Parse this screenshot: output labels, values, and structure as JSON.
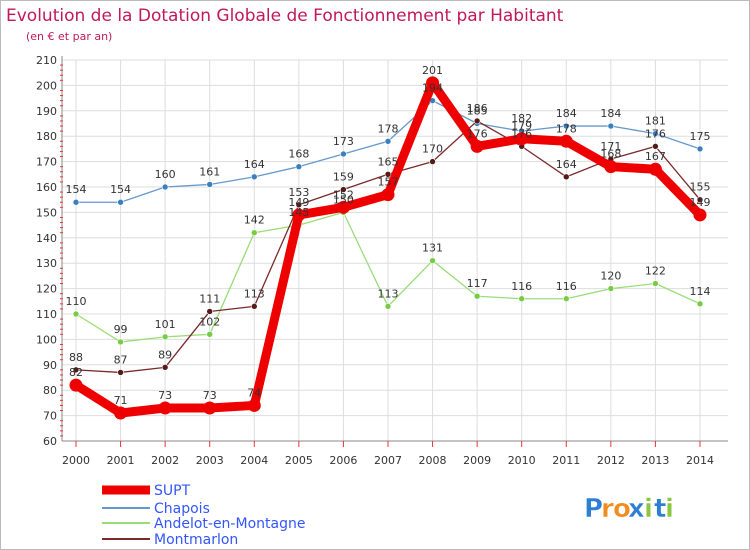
{
  "chart_data": {
    "type": "line",
    "title": "Evolution de la Dotation Globale de Fonctionnement par Habitant",
    "subtitle": "(en € et par an)",
    "xlabel": "",
    "ylabel": "",
    "ylim": [
      60,
      210
    ],
    "y_ticks": [
      60,
      70,
      80,
      90,
      100,
      110,
      120,
      130,
      140,
      150,
      160,
      170,
      180,
      190,
      200,
      210
    ],
    "grid": true,
    "legend_position": "bottom-left",
    "x": [
      "2000",
      "2001",
      "2002",
      "2003",
      "2004",
      "2005",
      "2006",
      "2007",
      "2008",
      "2009",
      "2010",
      "2011",
      "2012",
      "2013",
      "2014"
    ],
    "series": [
      {
        "name": "Chapois",
        "color": "#6699cc",
        "marker": "#3a7fc0",
        "values": [
          154,
          154,
          160,
          161,
          164,
          168,
          173,
          178,
          194,
          185,
          182,
          184,
          184,
          181,
          175
        ],
        "labels": [
          "154",
          "154",
          "160",
          "161",
          "164",
          "168",
          "173",
          "178",
          "194",
          "185",
          "182",
          "184",
          "184",
          "181",
          "175"
        ]
      },
      {
        "name": "Andelot-en-Montagne",
        "color": "#99dd77",
        "marker": "#77cc44",
        "values": [
          110,
          99,
          101,
          102,
          142,
          145,
          150,
          113,
          131,
          117,
          116,
          116,
          120,
          122,
          114
        ],
        "labels": [
          "110",
          "99",
          "101",
          "102",
          "142",
          "145",
          "150",
          "113",
          "131",
          "117",
          "116",
          "116",
          "120",
          "122",
          "114"
        ]
      },
      {
        "name": "Montmarlon",
        "color": "#7a2a2a",
        "marker": "#551a1a",
        "values": [
          88,
          87,
          89,
          111,
          113,
          153,
          159,
          165,
          170,
          186,
          176,
          164,
          171,
          176,
          155
        ],
        "labels": [
          "88",
          "87",
          "89",
          "111",
          "113",
          "153",
          "159",
          "165",
          "170",
          "186",
          "176",
          "164",
          "171",
          "176",
          "155"
        ]
      },
      {
        "name": "SUPT",
        "color": "#ee0000",
        "marker": "#ee0000",
        "values": [
          82,
          71,
          73,
          73,
          74,
          149,
          152,
          157,
          201,
          176,
          179,
          178,
          168,
          167,
          149
        ],
        "labels": [
          "82",
          "71",
          "73",
          "73",
          "74",
          "149",
          "152",
          "157",
          "201",
          "176",
          "179",
          "178",
          "168",
          "167",
          "149"
        ]
      }
    ],
    "legend_order": [
      "SUPT",
      "Chapois",
      "Andelot-en-Montagne",
      "Montmarlon"
    ]
  },
  "branding": {
    "logo_letters": [
      "P",
      "r",
      "o",
      "x",
      "i",
      "t",
      "i"
    ],
    "logo_colors": [
      "#2d7fd3",
      "#f28c1e",
      "#f28c1e",
      "#2d7fd3",
      "#8cc63f",
      "#2d7fd3",
      "#8cc63f"
    ]
  }
}
